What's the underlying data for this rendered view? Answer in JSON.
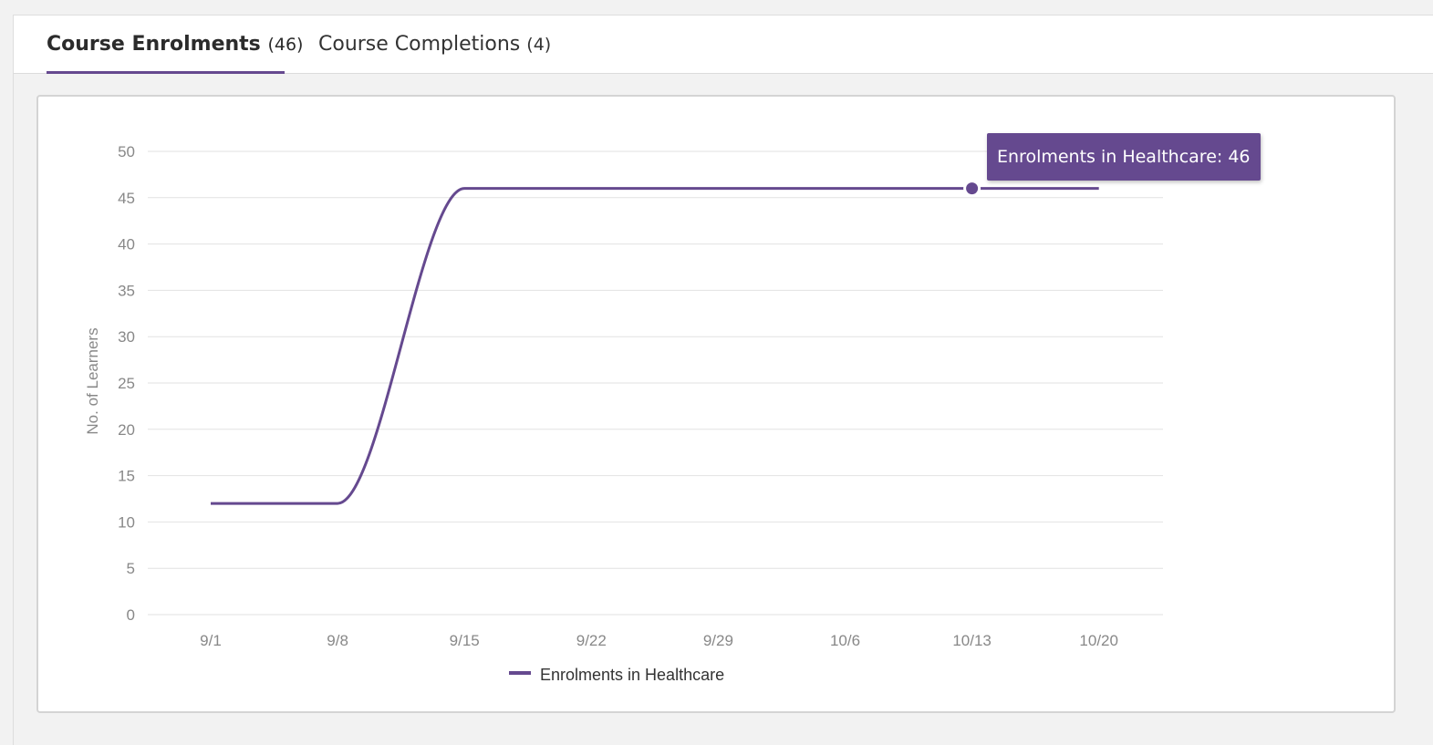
{
  "tabs": [
    {
      "label": "Course Enrolments",
      "count": "(46)",
      "active": true
    },
    {
      "label": "Course Completions",
      "count": "(4)",
      "active": false
    }
  ],
  "tooltip": {
    "text": "Enrolments in Healthcare: 46"
  },
  "colors": {
    "accent": "#65498f",
    "grid": "#e2e2e2",
    "tick_text": "#888888"
  },
  "chart_data": {
    "type": "line",
    "title": "",
    "xlabel": "",
    "ylabel": "No. of Learners",
    "categories": [
      "9/1",
      "9/8",
      "9/15",
      "9/22",
      "9/29",
      "10/6",
      "10/13",
      "10/20"
    ],
    "y_ticks": [
      "0",
      "5",
      "10",
      "15",
      "20",
      "25",
      "30",
      "35",
      "40",
      "45",
      "50"
    ],
    "ylim": [
      0,
      50
    ],
    "grid": true,
    "legend_position": "bottom",
    "series": [
      {
        "name": "Enrolments in Healthcare",
        "values": [
          12,
          12,
          46,
          46,
          46,
          46,
          46,
          46
        ],
        "color": "#65498f"
      }
    ],
    "highlighted_point": {
      "category": "10/13",
      "value": 46
    }
  }
}
